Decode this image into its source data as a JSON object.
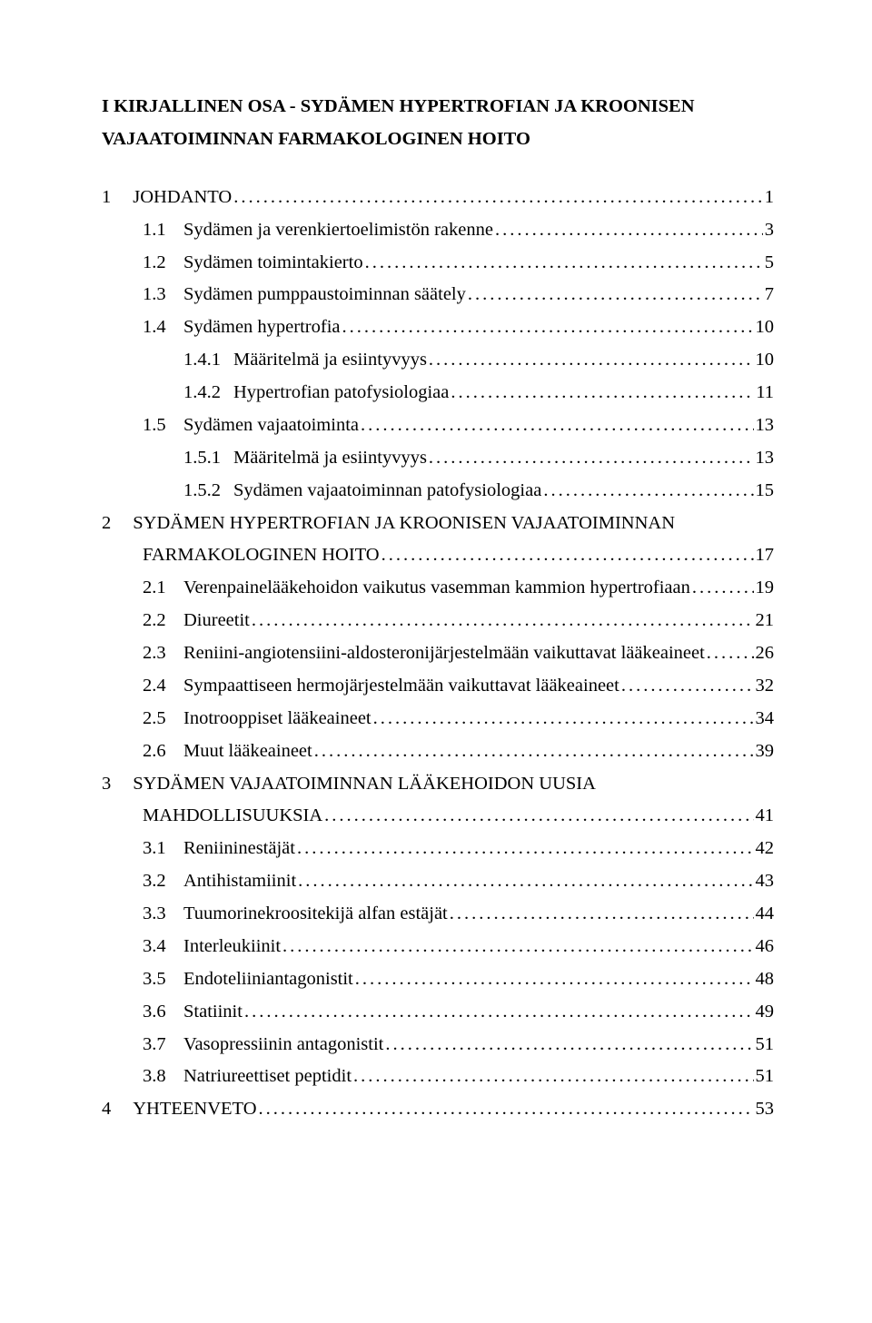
{
  "title": {
    "line1": "I KIRJALLINEN OSA - SYDÄMEN HYPERTROFIAN JA KROONISEN",
    "line2": "VAJAATOIMINNAN FARMAKOLOGINEN HOITO"
  },
  "toc": [
    {
      "type": "l1",
      "num": "1",
      "label": "JOHDANTO",
      "page": "1"
    },
    {
      "type": "l2",
      "num": "1.1",
      "label": "Sydämen ja verenkiertoelimistön rakenne",
      "page": "3"
    },
    {
      "type": "l2",
      "num": "1.2",
      "label": "Sydämen toimintakierto",
      "page": "5"
    },
    {
      "type": "l2",
      "num": "1.3",
      "label": "Sydämen pumppaustoiminnan säätely",
      "page": "7"
    },
    {
      "type": "l2",
      "num": "1.4",
      "label": "Sydämen hypertrofia",
      "page": "10"
    },
    {
      "type": "l3",
      "num": "1.4.1",
      "label": "Määritelmä ja esiintyvyys",
      "page": "10"
    },
    {
      "type": "l3",
      "num": "1.4.2",
      "label": "Hypertrofian patofysiologiaa",
      "page": "11"
    },
    {
      "type": "l2",
      "num": "1.5",
      "label": "Sydämen vajaatoiminta",
      "page": "13"
    },
    {
      "type": "l3",
      "num": "1.5.1",
      "label": "Määritelmä ja esiintyvyys",
      "page": "13"
    },
    {
      "type": "l3",
      "num": "1.5.2",
      "label": "Sydämen vajaatoiminnan patofysiologiaa",
      "page": "15"
    },
    {
      "type": "l1-multi",
      "num": "2",
      "label1": "SYDÄMEN HYPERTROFIAN JA KROONISEN VAJAATOIMINNAN",
      "label2": "FARMAKOLOGINEN HOITO",
      "page": "17"
    },
    {
      "type": "l2",
      "num": "2.1",
      "label": "Verenpainelääkehoidon vaikutus vasemman kammion hypertrofiaan",
      "page": "19"
    },
    {
      "type": "l2",
      "num": "2.2",
      "label": "Diureetit",
      "page": "21"
    },
    {
      "type": "l2",
      "num": "2.3",
      "label": "Reniini-angiotensiini-aldosteronijärjestelmään vaikuttavat lääkeaineet",
      "page": "26"
    },
    {
      "type": "l2",
      "num": "2.4",
      "label": "Sympaattiseen hermojärjestelmään vaikuttavat lääkeaineet",
      "page": "32"
    },
    {
      "type": "l2",
      "num": "2.5",
      "label": "Inotrooppiset lääkeaineet",
      "page": "34"
    },
    {
      "type": "l2",
      "num": "2.6",
      "label": "Muut lääkeaineet",
      "page": "39"
    },
    {
      "type": "l1-multi",
      "num": "3",
      "label1": "SYDÄMEN VAJAATOIMINNAN LÄÄKEHOIDON UUSIA",
      "label2": "MAHDOLLISUUKSIA",
      "page": "41"
    },
    {
      "type": "l2",
      "num": "3.1",
      "label": "Reniininestäjät",
      "page": "42"
    },
    {
      "type": "l2",
      "num": "3.2",
      "label": "Antihistamiinit",
      "page": "43"
    },
    {
      "type": "l2",
      "num": "3.3",
      "label": "Tuumorinekroositekijä alfan estäjät",
      "page": "44"
    },
    {
      "type": "l2",
      "num": "3.4",
      "label": "Interleukiinit",
      "page": "46"
    },
    {
      "type": "l2",
      "num": "3.5",
      "label": "Endoteliiniantagonistit",
      "page": "48"
    },
    {
      "type": "l2",
      "num": "3.6",
      "label": "Statiinit",
      "page": "49"
    },
    {
      "type": "l2",
      "num": "3.7",
      "label": "Vasopressiinin antagonistit",
      "page": "51"
    },
    {
      "type": "l2",
      "num": "3.8",
      "label": "Natriureettiset peptidit",
      "page": "51"
    },
    {
      "type": "l1",
      "num": "4",
      "label": "YHTEENVETO",
      "page": "53"
    }
  ]
}
